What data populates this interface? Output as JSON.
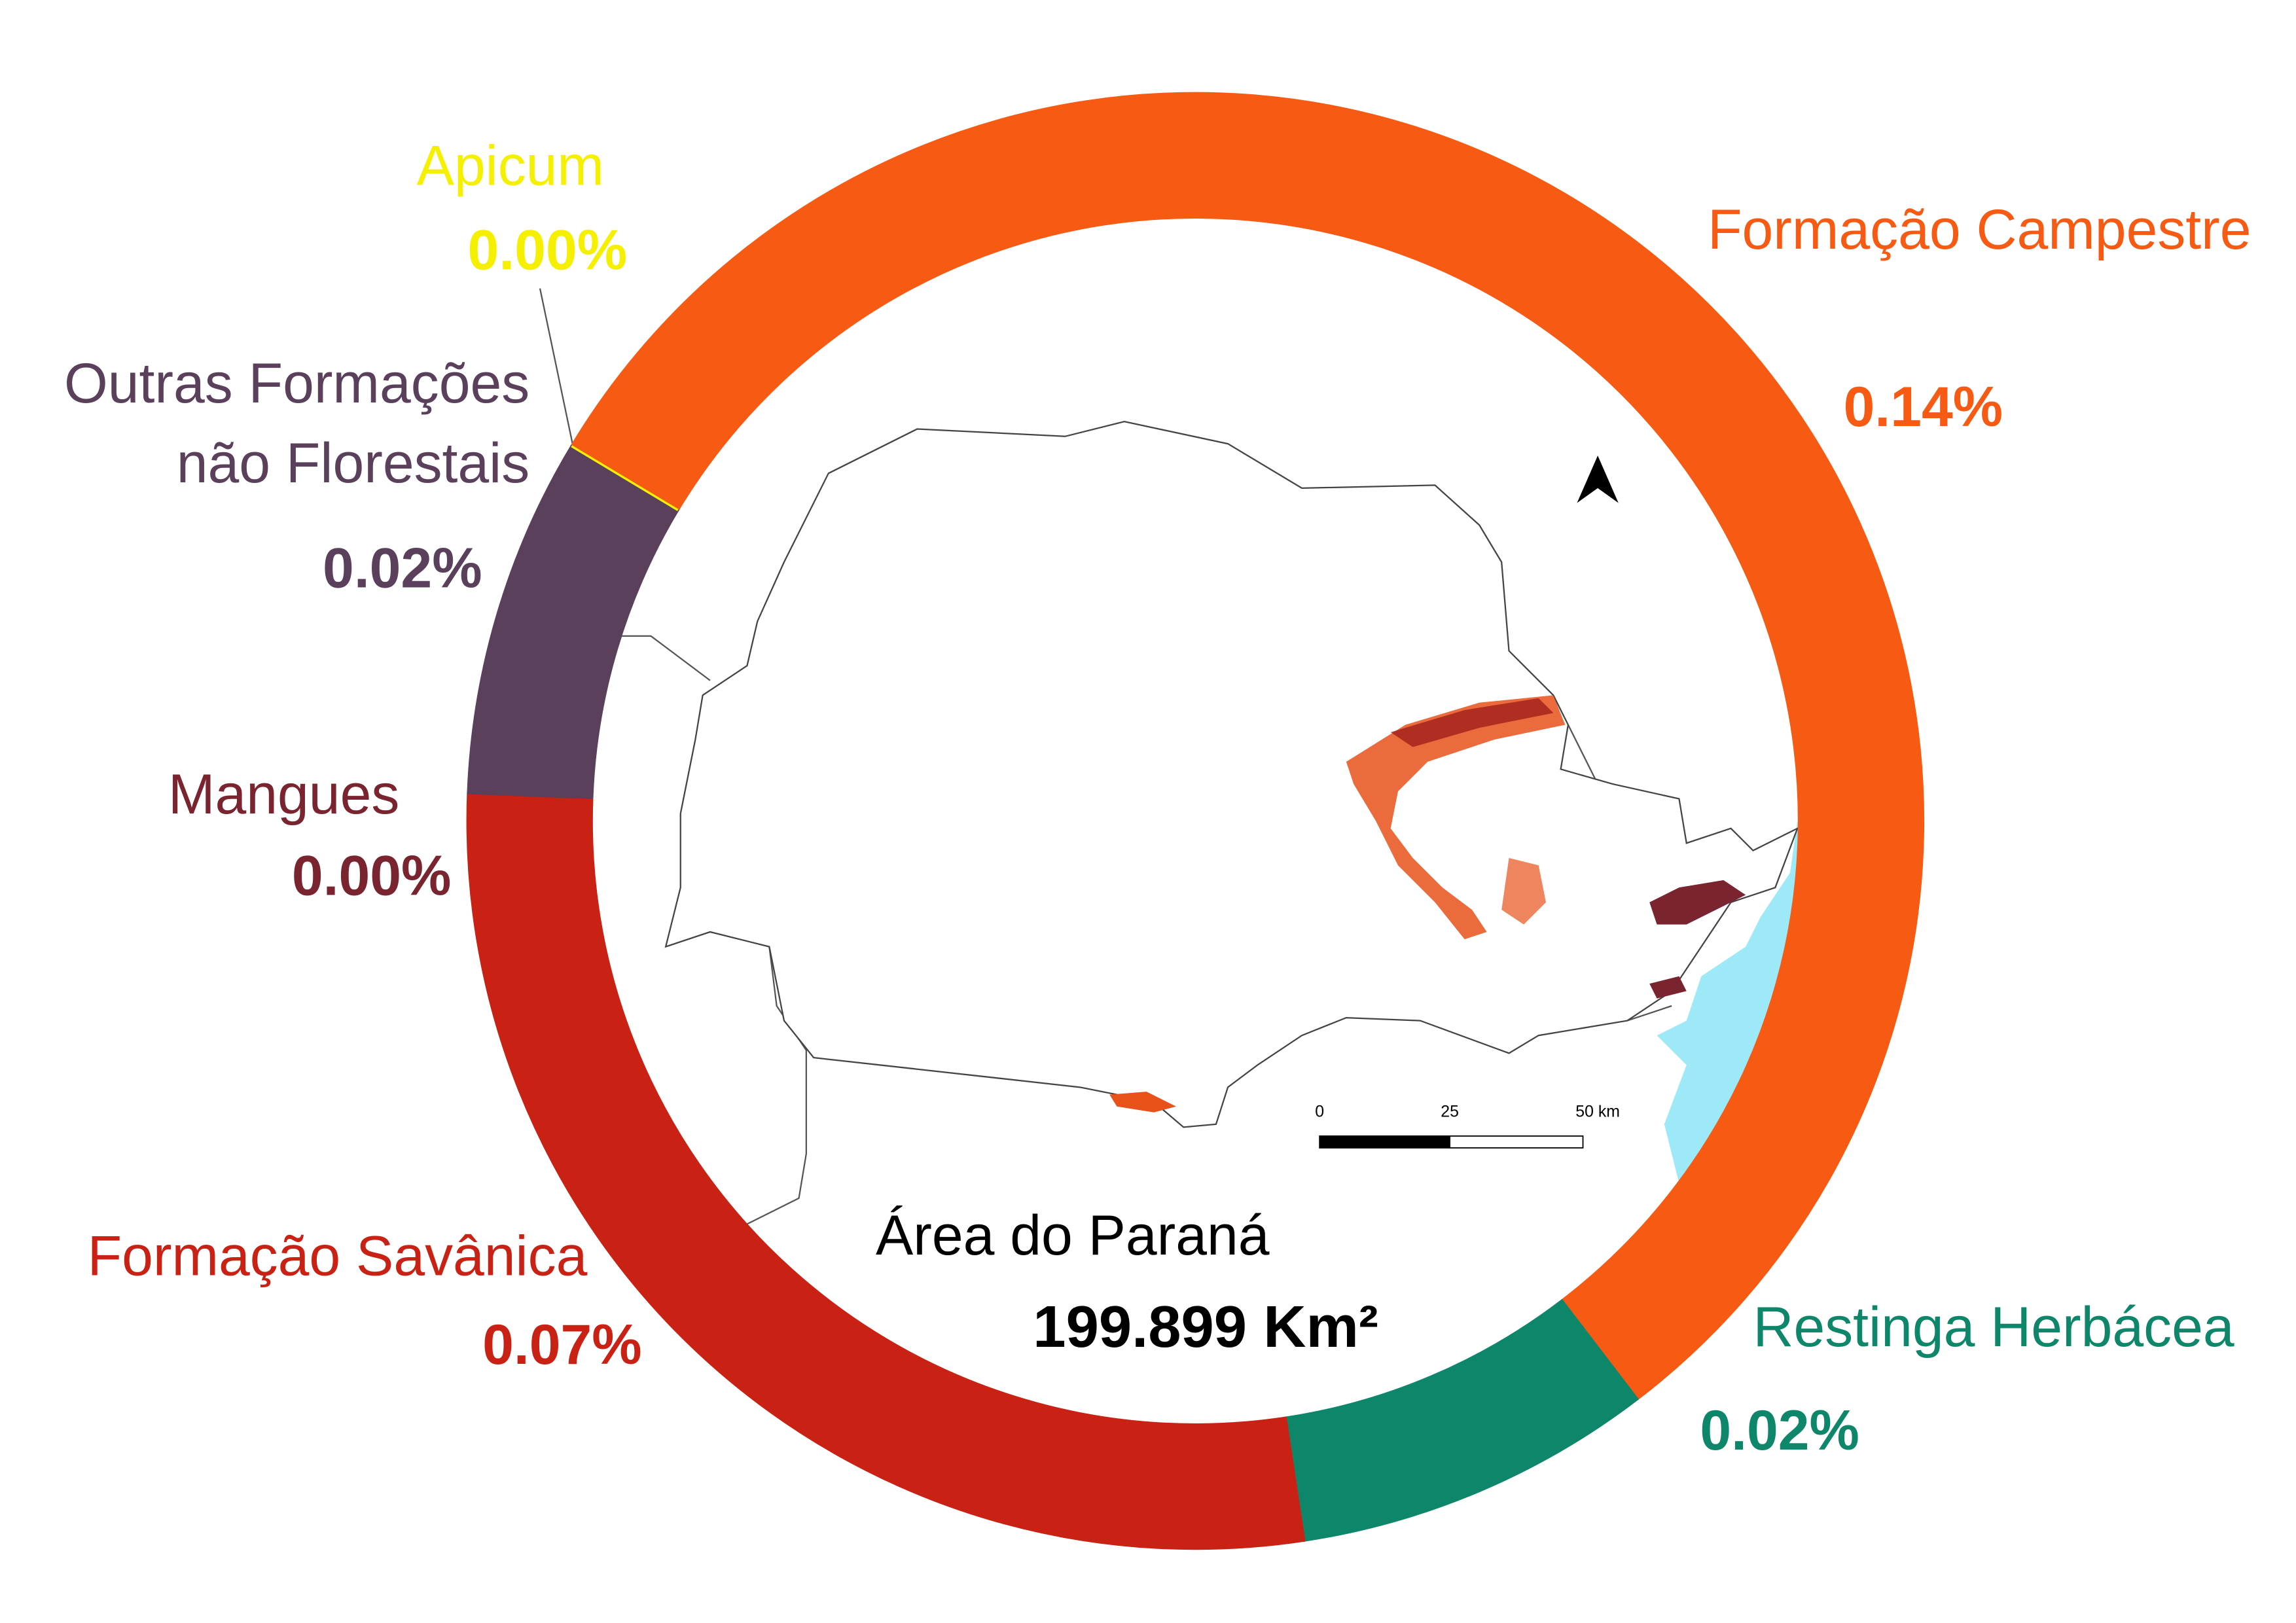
{
  "chart_data": {
    "type": "donut",
    "categories": [
      "Formação Campestre",
      "Restinga Herbácea",
      "Formação Savânica",
      "Mangues",
      "Outras Formações não Florestais",
      "Apicum"
    ],
    "values": [
      0.14,
      0.02,
      0.07,
      0.0,
      0.02,
      0.0
    ],
    "value_labels": [
      "0.14%",
      "0.02%",
      "0.07%",
      "0.00%",
      "0.02%",
      "0.00%"
    ],
    "colors": [
      "#f75a12",
      "#0e866a",
      "#c92215",
      "#7a2430",
      "#5b405c",
      "#f5f000"
    ],
    "center_title": "Área do Paraná",
    "center_value": "199.899 Km²",
    "scale_labels": [
      "0",
      "25",
      "50 km"
    ]
  }
}
